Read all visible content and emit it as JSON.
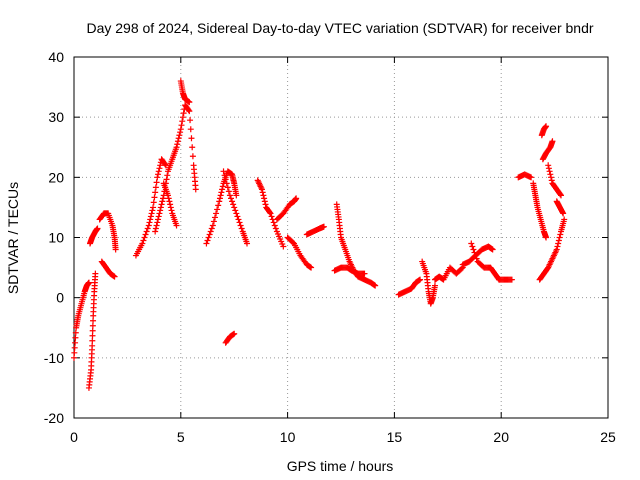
{
  "chart_data": {
    "type": "scatter",
    "title": "Day 298 of 2024, Sidereal Day-to-day VTEC variation (SDTVAR) for receiver bndr",
    "xlabel": "GPS time / hours",
    "ylabel": "SDTVAR / TECUs",
    "xlim": [
      0,
      25
    ],
    "ylim": [
      -20,
      40
    ],
    "xticks": [
      0,
      5,
      10,
      15,
      20,
      25
    ],
    "yticks": [
      -20,
      -10,
      0,
      10,
      20,
      30,
      40
    ],
    "xtick_labels": [
      "0",
      "5",
      "10",
      "15",
      "20",
      "25"
    ],
    "ytick_labels": [
      "-20",
      "-10",
      "0",
      "10",
      "20",
      "30",
      "40"
    ],
    "grid": true,
    "marker": "+",
    "color": "#ff0000",
    "series": [
      {
        "name": "arc-1",
        "points": [
          [
            0.0,
            -10
          ],
          [
            0.1,
            -5
          ],
          [
            0.2,
            -3
          ],
          [
            0.35,
            -1
          ],
          [
            0.5,
            1
          ],
          [
            0.6,
            2
          ],
          [
            0.7,
            2.5
          ]
        ]
      },
      {
        "name": "arc-2",
        "points": [
          [
            0.7,
            -15
          ],
          [
            0.8,
            -12
          ],
          [
            0.85,
            -8
          ],
          [
            0.9,
            -3
          ],
          [
            0.95,
            1
          ],
          [
            1.0,
            4
          ]
        ]
      },
      {
        "name": "arc-3",
        "points": [
          [
            0.75,
            9
          ],
          [
            0.85,
            10
          ],
          [
            1.0,
            11
          ],
          [
            1.1,
            11.5
          ]
        ]
      },
      {
        "name": "arc-4",
        "points": [
          [
            1.2,
            13
          ],
          [
            1.4,
            14
          ],
          [
            1.6,
            14
          ],
          [
            1.8,
            12
          ],
          [
            1.9,
            10
          ],
          [
            1.95,
            8
          ]
        ]
      },
      {
        "name": "arc-5",
        "points": [
          [
            1.3,
            6
          ],
          [
            1.5,
            5
          ],
          [
            1.7,
            4
          ],
          [
            1.9,
            3.5
          ]
        ]
      },
      {
        "name": "arc-6",
        "points": [
          [
            2.9,
            7
          ],
          [
            3.2,
            9
          ],
          [
            3.5,
            12
          ],
          [
            3.7,
            15
          ],
          [
            3.9,
            20
          ],
          [
            4.1,
            23
          ],
          [
            4.3,
            22
          ]
        ]
      },
      {
        "name": "arc-7",
        "points": [
          [
            3.8,
            11
          ],
          [
            4.0,
            14
          ],
          [
            4.2,
            17
          ],
          [
            4.4,
            21
          ],
          [
            4.6,
            23
          ],
          [
            4.8,
            25
          ],
          [
            5.0,
            28
          ],
          [
            5.2,
            32
          ],
          [
            5.4,
            31
          ],
          [
            5.6,
            22
          ],
          [
            5.7,
            18
          ]
        ]
      },
      {
        "name": "arc-8",
        "points": [
          [
            4.2,
            19
          ],
          [
            4.4,
            17
          ],
          [
            4.6,
            14
          ],
          [
            4.8,
            12
          ]
        ]
      },
      {
        "name": "arc-9",
        "points": [
          [
            5.0,
            36
          ],
          [
            5.1,
            34
          ],
          [
            5.2,
            33
          ],
          [
            5.4,
            32.5
          ]
        ]
      },
      {
        "name": "arc-10",
        "points": [
          [
            6.2,
            9
          ],
          [
            6.5,
            12
          ],
          [
            6.8,
            16
          ],
          [
            7.0,
            19
          ],
          [
            7.2,
            21
          ],
          [
            7.4,
            20.5
          ],
          [
            7.5,
            19
          ],
          [
            7.6,
            17
          ]
        ]
      },
      {
        "name": "arc-11",
        "points": [
          [
            7.0,
            21
          ],
          [
            7.3,
            17
          ],
          [
            7.6,
            14
          ],
          [
            7.9,
            11
          ],
          [
            8.1,
            9
          ]
        ]
      },
      {
        "name": "arc-12",
        "points": [
          [
            7.1,
            -7.5
          ],
          [
            7.3,
            -6.5
          ],
          [
            7.5,
            -6
          ]
        ]
      },
      {
        "name": "arc-13",
        "points": [
          [
            8.6,
            19.5
          ],
          [
            8.8,
            18
          ],
          [
            9.0,
            15
          ],
          [
            9.2,
            14
          ],
          [
            9.5,
            11
          ],
          [
            9.8,
            8.5
          ]
        ]
      },
      {
        "name": "arc-14",
        "points": [
          [
            9.5,
            13
          ],
          [
            9.8,
            14
          ],
          [
            10.1,
            15.5
          ],
          [
            10.3,
            16
          ],
          [
            10.4,
            16.5
          ]
        ]
      },
      {
        "name": "arc-15",
        "points": [
          [
            10.0,
            10
          ],
          [
            10.3,
            9
          ],
          [
            10.6,
            7
          ],
          [
            10.9,
            5.5
          ],
          [
            11.1,
            5
          ]
        ]
      },
      {
        "name": "arc-16",
        "points": [
          [
            10.9,
            10.5
          ],
          [
            11.2,
            11
          ],
          [
            11.5,
            11.5
          ],
          [
            11.7,
            11.8
          ]
        ]
      },
      {
        "name": "arc-17",
        "points": [
          [
            12.3,
            15.5
          ],
          [
            12.4,
            13
          ],
          [
            12.5,
            10
          ],
          [
            12.7,
            8
          ],
          [
            12.9,
            6
          ],
          [
            13.1,
            4.5
          ],
          [
            13.3,
            3.5
          ],
          [
            13.6,
            3
          ],
          [
            13.9,
            2.5
          ],
          [
            14.1,
            2
          ]
        ]
      },
      {
        "name": "arc-18",
        "points": [
          [
            12.2,
            4.5
          ],
          [
            12.5,
            5
          ],
          [
            12.8,
            5
          ],
          [
            13.0,
            4.5
          ],
          [
            13.3,
            4
          ],
          [
            13.6,
            4
          ]
        ]
      },
      {
        "name": "arc-19",
        "points": [
          [
            15.2,
            0.5
          ],
          [
            15.5,
            1
          ],
          [
            15.8,
            1.5
          ],
          [
            16.0,
            2.5
          ],
          [
            16.2,
            3
          ]
        ]
      },
      {
        "name": "arc-20",
        "points": [
          [
            16.3,
            6
          ],
          [
            16.5,
            4
          ],
          [
            16.6,
            1
          ],
          [
            16.7,
            -1
          ],
          [
            16.8,
            0
          ],
          [
            16.9,
            2
          ]
        ]
      },
      {
        "name": "arc-21",
        "points": [
          [
            16.9,
            3
          ],
          [
            17.1,
            3.5
          ],
          [
            17.3,
            3
          ],
          [
            17.6,
            5
          ],
          [
            17.9,
            4
          ],
          [
            18.2,
            5
          ]
        ]
      },
      {
        "name": "arc-22",
        "points": [
          [
            18.2,
            5.5
          ],
          [
            18.5,
            6
          ],
          [
            18.8,
            7
          ],
          [
            19.1,
            8
          ],
          [
            19.4,
            8.5
          ],
          [
            19.6,
            8
          ]
        ]
      },
      {
        "name": "arc-23",
        "points": [
          [
            18.6,
            9
          ],
          [
            18.9,
            6
          ],
          [
            19.2,
            5
          ],
          [
            19.5,
            5
          ],
          [
            19.7,
            4
          ],
          [
            19.9,
            3
          ]
        ]
      },
      {
        "name": "arc-24",
        "points": [
          [
            19.9,
            3
          ],
          [
            20.2,
            3
          ],
          [
            20.5,
            3
          ]
        ]
      },
      {
        "name": "arc-25",
        "points": [
          [
            20.8,
            20
          ],
          [
            21.1,
            20.5
          ],
          [
            21.4,
            20
          ]
        ]
      },
      {
        "name": "arc-26",
        "points": [
          [
            21.5,
            19
          ],
          [
            21.6,
            17
          ],
          [
            21.7,
            15
          ],
          [
            21.85,
            13
          ],
          [
            22.0,
            11
          ],
          [
            22.1,
            10
          ]
        ]
      },
      {
        "name": "arc-27",
        "points": [
          [
            21.8,
            3
          ],
          [
            22.0,
            4
          ],
          [
            22.2,
            5
          ],
          [
            22.4,
            6.5
          ],
          [
            22.6,
            8
          ],
          [
            22.8,
            11
          ],
          [
            22.95,
            13
          ]
        ]
      },
      {
        "name": "arc-28",
        "points": [
          [
            21.9,
            27
          ],
          [
            22.0,
            28
          ],
          [
            22.1,
            28.5
          ]
        ]
      },
      {
        "name": "arc-29",
        "points": [
          [
            21.95,
            23
          ],
          [
            22.1,
            24
          ],
          [
            22.3,
            25
          ],
          [
            22.4,
            26
          ]
        ]
      },
      {
        "name": "arc-30",
        "points": [
          [
            22.2,
            22
          ],
          [
            22.4,
            19
          ],
          [
            22.6,
            18
          ],
          [
            22.8,
            17
          ]
        ]
      },
      {
        "name": "arc-31",
        "points": [
          [
            22.6,
            16
          ],
          [
            22.75,
            15
          ],
          [
            22.9,
            14
          ]
        ]
      }
    ]
  }
}
